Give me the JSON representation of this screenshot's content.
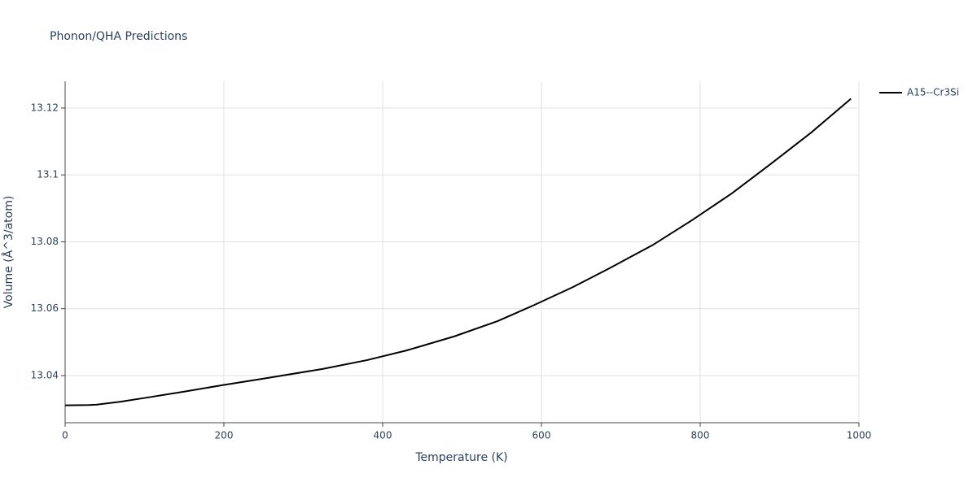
{
  "chart_data": {
    "type": "line",
    "title": "Phonon/QHA Predictions",
    "x_label": "Temperature (K)",
    "y_label": "Volume (Å^3/atom)",
    "x": [
      0,
      30,
      40,
      70,
      100,
      150,
      200,
      250,
      325,
      380,
      430,
      490,
      545,
      590,
      640,
      685,
      740,
      790,
      840,
      890,
      940,
      990
    ],
    "series": [
      {
        "name": "A15--Cr3Si",
        "color": "#000000",
        "values": [
          13.0311,
          13.0312,
          13.0313,
          13.0322,
          13.0333,
          13.0352,
          13.0372,
          13.0391,
          13.042,
          13.0446,
          13.0475,
          13.0517,
          13.0563,
          13.061,
          13.0665,
          13.072,
          13.079,
          13.0865,
          13.0945,
          13.1035,
          13.1127,
          13.1228
        ]
      }
    ],
    "xlim": [
      0,
      1000
    ],
    "xticks": [
      0,
      200,
      400,
      600,
      800,
      1000
    ],
    "ylim": [
      13.0259,
      13.128
    ],
    "yticks": [
      13.04,
      13.06,
      13.08,
      13.1,
      13.12
    ],
    "grid": true,
    "legend": "right"
  }
}
